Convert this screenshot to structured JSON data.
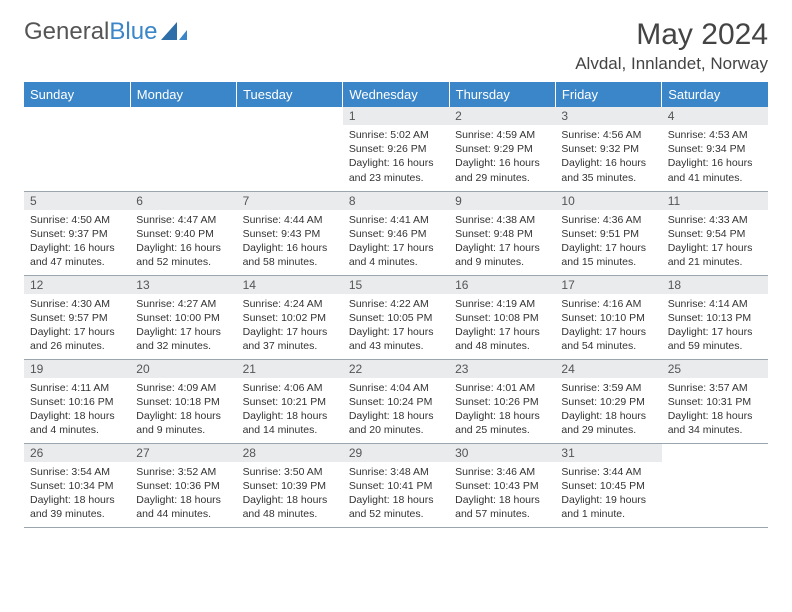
{
  "brand": {
    "part1": "General",
    "part2": "Blue"
  },
  "header": {
    "month_title": "May 2024",
    "location": "Alvdal, Innlandet, Norway"
  },
  "colors": {
    "header_bg": "#3a86c8",
    "header_text": "#ffffff",
    "daynum_bg": "#e9ebed",
    "border": "#9aa5ad",
    "text": "#333333"
  },
  "weekday_labels": [
    "Sunday",
    "Monday",
    "Tuesday",
    "Wednesday",
    "Thursday",
    "Friday",
    "Saturday"
  ],
  "weeks": [
    [
      null,
      null,
      null,
      {
        "n": "1",
        "sr": "5:02 AM",
        "ss": "9:26 PM",
        "dl": "16 hours and 23 minutes."
      },
      {
        "n": "2",
        "sr": "4:59 AM",
        "ss": "9:29 PM",
        "dl": "16 hours and 29 minutes."
      },
      {
        "n": "3",
        "sr": "4:56 AM",
        "ss": "9:32 PM",
        "dl": "16 hours and 35 minutes."
      },
      {
        "n": "4",
        "sr": "4:53 AM",
        "ss": "9:34 PM",
        "dl": "16 hours and 41 minutes."
      }
    ],
    [
      {
        "n": "5",
        "sr": "4:50 AM",
        "ss": "9:37 PM",
        "dl": "16 hours and 47 minutes."
      },
      {
        "n": "6",
        "sr": "4:47 AM",
        "ss": "9:40 PM",
        "dl": "16 hours and 52 minutes."
      },
      {
        "n": "7",
        "sr": "4:44 AM",
        "ss": "9:43 PM",
        "dl": "16 hours and 58 minutes."
      },
      {
        "n": "8",
        "sr": "4:41 AM",
        "ss": "9:46 PM",
        "dl": "17 hours and 4 minutes."
      },
      {
        "n": "9",
        "sr": "4:38 AM",
        "ss": "9:48 PM",
        "dl": "17 hours and 9 minutes."
      },
      {
        "n": "10",
        "sr": "4:36 AM",
        "ss": "9:51 PM",
        "dl": "17 hours and 15 minutes."
      },
      {
        "n": "11",
        "sr": "4:33 AM",
        "ss": "9:54 PM",
        "dl": "17 hours and 21 minutes."
      }
    ],
    [
      {
        "n": "12",
        "sr": "4:30 AM",
        "ss": "9:57 PM",
        "dl": "17 hours and 26 minutes."
      },
      {
        "n": "13",
        "sr": "4:27 AM",
        "ss": "10:00 PM",
        "dl": "17 hours and 32 minutes."
      },
      {
        "n": "14",
        "sr": "4:24 AM",
        "ss": "10:02 PM",
        "dl": "17 hours and 37 minutes."
      },
      {
        "n": "15",
        "sr": "4:22 AM",
        "ss": "10:05 PM",
        "dl": "17 hours and 43 minutes."
      },
      {
        "n": "16",
        "sr": "4:19 AM",
        "ss": "10:08 PM",
        "dl": "17 hours and 48 minutes."
      },
      {
        "n": "17",
        "sr": "4:16 AM",
        "ss": "10:10 PM",
        "dl": "17 hours and 54 minutes."
      },
      {
        "n": "18",
        "sr": "4:14 AM",
        "ss": "10:13 PM",
        "dl": "17 hours and 59 minutes."
      }
    ],
    [
      {
        "n": "19",
        "sr": "4:11 AM",
        "ss": "10:16 PM",
        "dl": "18 hours and 4 minutes."
      },
      {
        "n": "20",
        "sr": "4:09 AM",
        "ss": "10:18 PM",
        "dl": "18 hours and 9 minutes."
      },
      {
        "n": "21",
        "sr": "4:06 AM",
        "ss": "10:21 PM",
        "dl": "18 hours and 14 minutes."
      },
      {
        "n": "22",
        "sr": "4:04 AM",
        "ss": "10:24 PM",
        "dl": "18 hours and 20 minutes."
      },
      {
        "n": "23",
        "sr": "4:01 AM",
        "ss": "10:26 PM",
        "dl": "18 hours and 25 minutes."
      },
      {
        "n": "24",
        "sr": "3:59 AM",
        "ss": "10:29 PM",
        "dl": "18 hours and 29 minutes."
      },
      {
        "n": "25",
        "sr": "3:57 AM",
        "ss": "10:31 PM",
        "dl": "18 hours and 34 minutes."
      }
    ],
    [
      {
        "n": "26",
        "sr": "3:54 AM",
        "ss": "10:34 PM",
        "dl": "18 hours and 39 minutes."
      },
      {
        "n": "27",
        "sr": "3:52 AM",
        "ss": "10:36 PM",
        "dl": "18 hours and 44 minutes."
      },
      {
        "n": "28",
        "sr": "3:50 AM",
        "ss": "10:39 PM",
        "dl": "18 hours and 48 minutes."
      },
      {
        "n": "29",
        "sr": "3:48 AM",
        "ss": "10:41 PM",
        "dl": "18 hours and 52 minutes."
      },
      {
        "n": "30",
        "sr": "3:46 AM",
        "ss": "10:43 PM",
        "dl": "18 hours and 57 minutes."
      },
      {
        "n": "31",
        "sr": "3:44 AM",
        "ss": "10:45 PM",
        "dl": "19 hours and 1 minute."
      },
      null
    ]
  ],
  "labels": {
    "sunrise_prefix": "Sunrise: ",
    "sunset_prefix": "Sunset: ",
    "daylight_prefix": "Daylight: "
  }
}
